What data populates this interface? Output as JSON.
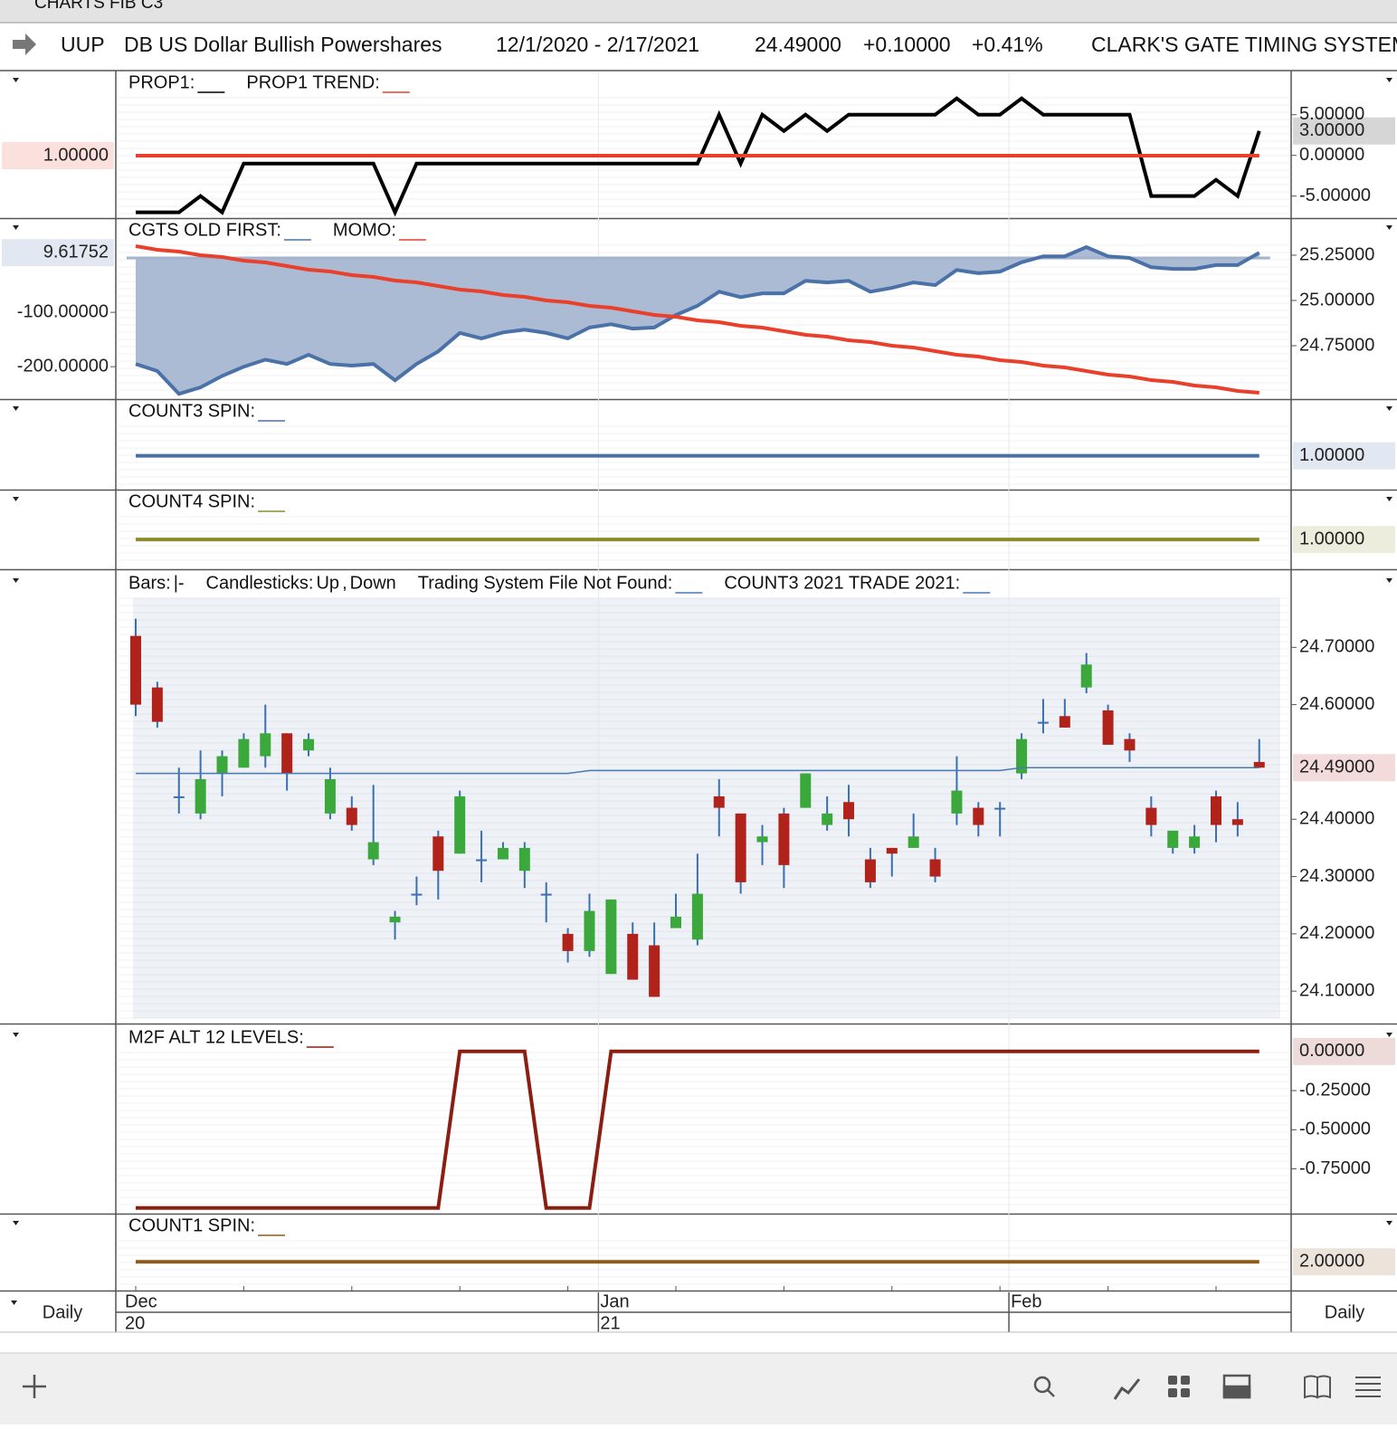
{
  "window_title": "CHARTS FIB C3",
  "header": {
    "symbol": "UUP",
    "name": "DB US Dollar Bullish Powershares",
    "date_range": "12/1/2020 - 2/17/2021",
    "last": "24.49000",
    "change": "+0.10000",
    "change_pct": "+0.41%",
    "system": "CLARK'S GATE TIMING SYSTEM"
  },
  "x_axis": {
    "categories": [
      "Dec",
      null,
      null,
      null,
      null,
      null,
      null,
      null,
      null,
      null,
      null,
      null,
      null,
      null,
      null,
      null,
      null,
      null,
      null,
      null,
      null,
      null,
      "Jan",
      null,
      null,
      null,
      null,
      null,
      null,
      null,
      null,
      null,
      null,
      null,
      null,
      null,
      null,
      null,
      null,
      null,
      null,
      "Feb",
      null,
      null,
      null,
      null,
      null,
      null,
      null,
      null,
      null,
      null,
      null
    ],
    "years": [
      "20",
      null,
      null,
      null,
      null,
      null,
      null,
      null,
      null,
      null,
      null,
      null,
      null,
      null,
      null,
      null,
      null,
      null,
      null,
      null,
      null,
      null,
      "21",
      null,
      null,
      null,
      null,
      null,
      null,
      null,
      null,
      null,
      null,
      null,
      null,
      null,
      null,
      null,
      null,
      null,
      null,
      null,
      null,
      null,
      null,
      null,
      null,
      null,
      null,
      null,
      null,
      null,
      null
    ]
  },
  "period_left": "Daily",
  "period_right": "Daily",
  "chart_data": [
    {
      "type": "line",
      "ylim": [
        -7.6,
        10.2
      ],
      "yticks": [
        {
          "value": 5,
          "label": "5.00000"
        },
        {
          "value": 0,
          "label": "0.00000"
        },
        {
          "value": -5,
          "label": "-5.00000"
        }
      ],
      "y2lim": [
        0.15,
        2.15
      ],
      "y2ticks": [],
      "series": [
        {
          "name": "PROP1:",
          "color": "#000000",
          "last_label": "3.00000",
          "values": [
            -7,
            -7,
            -7,
            -5,
            -7,
            -1,
            -1,
            -1,
            -1,
            -1,
            -1,
            -1,
            -7,
            -1,
            -1,
            -1,
            -1,
            -1,
            -1,
            -1,
            -1,
            -1,
            -1,
            -1,
            -1,
            -1,
            -1,
            5,
            -1,
            5,
            3,
            5,
            3,
            5,
            5,
            5,
            5,
            5,
            7,
            5,
            5,
            7,
            5,
            5,
            5,
            5,
            5,
            -5,
            -5,
            -5,
            -3,
            -5,
            3
          ]
        },
        {
          "name": "PROP1 TREND:",
          "color": "#e8402a",
          "axis": "y2",
          "last_label": "1.00000",
          "values": [
            1,
            1,
            1,
            1,
            1,
            1,
            1,
            1,
            1,
            1,
            1,
            1,
            1,
            1,
            1,
            1,
            1,
            1,
            1,
            1,
            1,
            1,
            1,
            1,
            1,
            1,
            1,
            1,
            1,
            1,
            1,
            1,
            1,
            1,
            1,
            1,
            1,
            1,
            1,
            1,
            1,
            1,
            1,
            1,
            1,
            1,
            1,
            1,
            1,
            1,
            1,
            1,
            1
          ]
        }
      ]
    },
    {
      "type": "line",
      "ylim": [
        24.46,
        25.445
      ],
      "yticks": [
        {
          "value": 25.25,
          "label": "25.25000"
        },
        {
          "value": 25,
          "label": "25.00000"
        },
        {
          "value": 24.75,
          "label": "24.75000"
        }
      ],
      "y2lim": [
        -258,
        70
      ],
      "y2ticks": [
        {
          "value": -100,
          "label": "-100.00000"
        },
        {
          "value": -200,
          "label": "-200.00000"
        }
      ],
      "series": [
        {
          "name": "CGTS OLD FIRST:",
          "color": "#4a72a8",
          "fill": "#a3b4cf",
          "axis": "y2",
          "last_label": "9.61752",
          "values": [
            -195,
            -208,
            -250,
            -238,
            -217,
            -200,
            -187,
            -195,
            -178,
            -195,
            -198,
            -195,
            -225,
            -195,
            -172,
            -138,
            -148,
            -137,
            -132,
            -138,
            -148,
            -128,
            -122,
            -130,
            -128,
            -105,
            -88,
            -62,
            -72,
            -65,
            -65,
            -42,
            -45,
            -42,
            -62,
            -55,
            -45,
            -50,
            -22,
            -28,
            -25,
            -8,
            3,
            3,
            20,
            3,
            0,
            -17,
            -20,
            -20,
            -13,
            -13,
            9.61752
          ]
        },
        {
          "name": "MOMO:",
          "color": "#e8402a",
          "values": [
            25.3,
            25.28,
            25.27,
            25.25,
            25.24,
            25.22,
            25.21,
            25.19,
            25.17,
            25.16,
            25.14,
            25.13,
            25.11,
            25.1,
            25.08,
            25.06,
            25.05,
            25.03,
            25.02,
            25.0,
            24.99,
            24.97,
            24.96,
            24.94,
            24.92,
            24.91,
            24.89,
            24.88,
            24.86,
            24.85,
            24.83,
            24.81,
            24.8,
            24.78,
            24.77,
            24.75,
            24.74,
            24.72,
            24.7,
            24.69,
            24.67,
            24.66,
            24.64,
            24.63,
            24.61,
            24.59,
            24.58,
            24.56,
            24.55,
            24.53,
            24.52,
            24.5,
            24.49
          ]
        }
      ]
    },
    {
      "type": "line",
      "ylim": [
        0.4,
        2
      ],
      "yticks": [],
      "series": [
        {
          "name": "COUNT3 SPIN:",
          "color": "#4a6fa5",
          "last_label": "1.00000",
          "values": [
            1,
            1,
            1,
            1,
            1,
            1,
            1,
            1,
            1,
            1,
            1,
            1,
            1,
            1,
            1,
            1,
            1,
            1,
            1,
            1,
            1,
            1,
            1,
            1,
            1,
            1,
            1,
            1,
            1,
            1,
            1,
            1,
            1,
            1,
            1,
            1,
            1,
            1,
            1,
            1,
            1,
            1,
            1,
            1,
            1,
            1,
            1,
            1,
            1,
            1,
            1,
            1,
            1
          ]
        }
      ]
    },
    {
      "type": "line",
      "ylim": [
        0.4,
        2
      ],
      "yticks": [],
      "series": [
        {
          "name": "COUNT4 SPIN:",
          "color": "#8c8c2c",
          "last_label": "1.00000",
          "values": [
            1,
            1,
            1,
            1,
            1,
            1,
            1,
            1,
            1,
            1,
            1,
            1,
            1,
            1,
            1,
            1,
            1,
            1,
            1,
            1,
            1,
            1,
            1,
            1,
            1,
            1,
            1,
            1,
            1,
            1,
            1,
            1,
            1,
            1,
            1,
            1,
            1,
            1,
            1,
            1,
            1,
            1,
            1,
            1,
            1,
            1,
            1,
            1,
            1,
            1,
            1,
            1,
            1
          ]
        }
      ]
    },
    {
      "type": "candlestick",
      "ylim": [
        24.045,
        24.83
      ],
      "yticks": [
        {
          "value": 24.7,
          "label": "24.70000"
        },
        {
          "value": 24.6,
          "label": "24.60000"
        },
        {
          "value": 24.4,
          "label": "24.40000"
        },
        {
          "value": 24.3,
          "label": "24.30000"
        },
        {
          "value": 24.2,
          "label": "24.20000"
        },
        {
          "value": 24.1,
          "label": "24.10000"
        }
      ],
      "legend": [
        {
          "text": "Bars:"
        },
        {
          "text": "|-",
          "color": "#b0221a"
        },
        {
          "text": "Candlesticks:"
        },
        {
          "text": "Up",
          "color": "#3aa83a"
        },
        {
          "text": ","
        },
        {
          "text": "Down",
          "color": "#b0221a"
        },
        {
          "text": "Trading System File Not Found:",
          "swatch": "#4a78b0"
        },
        {
          "text": "COUNT3 2021 TRADE 2021:",
          "swatch": "#4a78b0"
        }
      ],
      "up_color": "#3aa83a",
      "down_color": "#b0221a",
      "wick_color": "#3a6fb0",
      "last_label": "24.49000",
      "open": [
        24.72,
        24.63,
        24.44,
        24.41,
        24.48,
        24.49,
        24.51,
        24.55,
        24.52,
        24.41,
        24.42,
        24.33,
        24.22,
        24.27,
        24.37,
        24.34,
        24.33,
        24.33,
        24.31,
        24.27,
        24.2,
        24.17,
        24.13,
        24.2,
        24.18,
        24.21,
        24.19,
        24.44,
        24.41,
        24.36,
        24.41,
        24.42,
        24.39,
        24.43,
        24.33,
        24.35,
        24.35,
        24.33,
        24.41,
        24.42,
        24.42,
        24.48,
        24.57,
        24.58,
        24.63,
        24.59,
        24.54,
        24.42,
        24.35,
        24.35,
        24.44,
        24.4,
        24.5
      ],
      "high": [
        24.75,
        24.64,
        24.49,
        24.52,
        24.52,
        24.55,
        24.6,
        24.55,
        24.55,
        24.49,
        24.44,
        24.46,
        24.24,
        24.3,
        24.38,
        24.45,
        24.38,
        24.36,
        24.36,
        24.29,
        24.21,
        24.27,
        24.26,
        24.22,
        24.22,
        24.27,
        24.34,
        24.47,
        24.41,
        24.39,
        24.42,
        24.48,
        24.44,
        24.46,
        24.35,
        24.35,
        24.41,
        24.35,
        24.51,
        24.43,
        24.43,
        24.55,
        24.61,
        24.61,
        24.69,
        24.6,
        24.55,
        24.44,
        24.38,
        24.39,
        24.45,
        24.43,
        24.54
      ],
      "low": [
        24.58,
        24.56,
        24.41,
        24.4,
        24.44,
        24.49,
        24.49,
        24.45,
        24.51,
        24.4,
        24.38,
        24.32,
        24.19,
        24.25,
        24.26,
        24.34,
        24.29,
        24.33,
        24.28,
        24.22,
        24.15,
        24.16,
        24.13,
        24.12,
        24.09,
        24.21,
        24.18,
        24.37,
        24.27,
        24.32,
        24.28,
        24.42,
        24.38,
        24.37,
        24.28,
        24.3,
        24.35,
        24.29,
        24.39,
        24.37,
        24.37,
        24.47,
        24.55,
        24.56,
        24.62,
        24.53,
        24.5,
        24.37,
        24.34,
        24.34,
        24.36,
        24.37,
        24.49
      ],
      "close": [
        24.6,
        24.57,
        24.44,
        24.47,
        24.51,
        24.54,
        24.55,
        24.48,
        24.54,
        24.47,
        24.39,
        24.36,
        24.23,
        24.27,
        24.31,
        24.44,
        24.33,
        24.35,
        24.35,
        24.27,
        24.17,
        24.24,
        24.26,
        24.12,
        24.09,
        24.23,
        24.27,
        24.42,
        24.29,
        24.37,
        24.32,
        24.48,
        24.41,
        24.4,
        24.29,
        24.34,
        24.37,
        24.3,
        24.45,
        24.39,
        24.42,
        24.54,
        24.57,
        24.56,
        24.67,
        24.53,
        24.52,
        24.39,
        24.38,
        24.37,
        24.39,
        24.39,
        24.49
      ],
      "series": [
        {
          "color": "#4a78b0",
          "values": [
            24.48,
            24.48,
            24.48,
            24.48,
            24.48,
            24.48,
            24.48,
            24.48,
            24.48,
            24.48,
            24.48,
            24.48,
            24.48,
            24.48,
            24.48,
            24.48,
            24.48,
            24.48,
            24.48,
            24.48,
            24.48,
            24.485,
            24.485,
            24.485,
            24.485,
            24.485,
            24.485,
            24.485,
            24.485,
            24.485,
            24.485,
            24.485,
            24.485,
            24.485,
            24.485,
            24.485,
            24.485,
            24.485,
            24.485,
            24.485,
            24.485,
            24.49,
            24.49,
            24.49,
            24.49,
            24.49,
            24.49,
            24.49,
            24.49,
            24.49,
            24.49,
            24.49,
            24.49
          ]
        }
      ]
    },
    {
      "type": "line",
      "ylim": [
        -1.03,
        0.155
      ],
      "yticks": [
        {
          "value": -0.25,
          "label": "-0.25000"
        },
        {
          "value": -0.5,
          "label": "-0.50000"
        },
        {
          "value": -0.75,
          "label": "-0.75000"
        }
      ],
      "series": [
        {
          "name": "M2F ALT 12 LEVELS:",
          "color": "#8b1e12",
          "last_label": "0.00000",
          "values": [
            -1,
            -1,
            -1,
            -1,
            -1,
            -1,
            -1,
            -1,
            -1,
            -1,
            -1,
            -1,
            -1,
            -1,
            -1,
            0,
            0,
            0,
            0,
            -1,
            -1,
            -1,
            0,
            0,
            0,
            0,
            0,
            0,
            0,
            0,
            0,
            0,
            0,
            0,
            0,
            0,
            0,
            0,
            0,
            0,
            0,
            0,
            0,
            0,
            0,
            0,
            0,
            0,
            0,
            0,
            0,
            0,
            0
          ]
        }
      ]
    },
    {
      "type": "line",
      "ylim": [
        1.4,
        3.0
      ],
      "yticks": [],
      "series": [
        {
          "name": "COUNT1 SPIN:",
          "color": "#8b5a1e",
          "last_label": "2.00000",
          "values": [
            2,
            2,
            2,
            2,
            2,
            2,
            2,
            2,
            2,
            2,
            2,
            2,
            2,
            2,
            2,
            2,
            2,
            2,
            2,
            2,
            2,
            2,
            2,
            2,
            2,
            2,
            2,
            2,
            2,
            2,
            2,
            2,
            2,
            2,
            2,
            2,
            2,
            2,
            2,
            2,
            2,
            2,
            2,
            2,
            2,
            2,
            2,
            2,
            2,
            2,
            2,
            2,
            2
          ]
        }
      ]
    }
  ]
}
